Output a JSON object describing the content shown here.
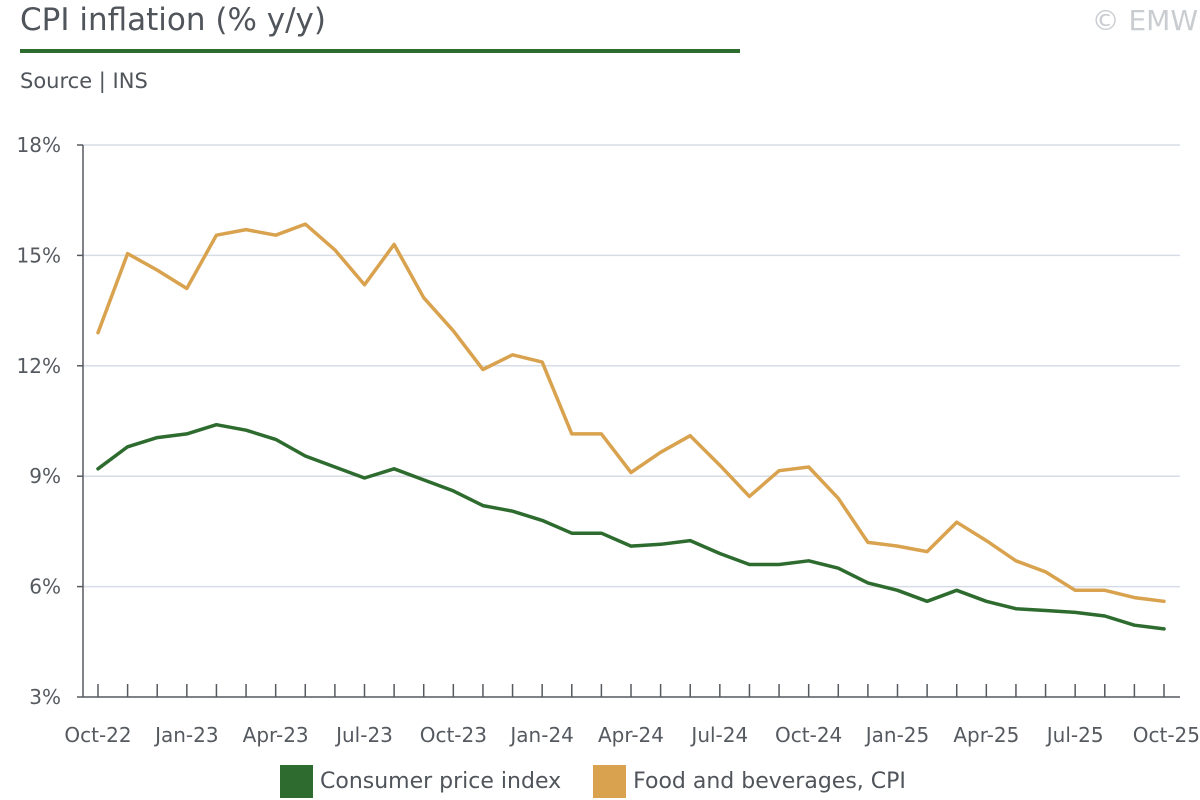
{
  "header": {
    "title": "CPI inflation (% y/y)",
    "source": "Source | INS",
    "copyright": "© EMW"
  },
  "colors": {
    "cpi": "#2e6b2f",
    "food": "#d9a24e",
    "grid": "#d6dde6",
    "axis": "#555a60",
    "underline": "#2e6b2f"
  },
  "chart_data": {
    "type": "line",
    "title": "CPI inflation (% y/y)",
    "x": [
      "Oct-22",
      "Nov-22",
      "Dec-22",
      "Jan-23",
      "Feb-23",
      "Mar-23",
      "Apr-23",
      "May-23",
      "Jun-23",
      "Jul-23",
      "Aug-23",
      "Sep-23",
      "Oct-23",
      "Nov-23",
      "Dec-23",
      "Jan-24",
      "Feb-24",
      "Mar-24",
      "Apr-24",
      "May-24",
      "Jun-24",
      "Jul-24",
      "Aug-24",
      "Sep-24",
      "Oct-24",
      "Nov-24",
      "Dec-24",
      "Jan-25",
      "Feb-25",
      "Mar-25",
      "Apr-25",
      "May-25",
      "Jun-25",
      "Jul-25",
      "Aug-25",
      "Sep-25",
      "Oct-25"
    ],
    "xticklabels": [
      "Oct-22",
      "Jan-23",
      "Apr-23",
      "Jul-23",
      "Oct-23",
      "Jan-24",
      "Apr-24",
      "Jul-24",
      "Oct-24",
      "Jan-25",
      "Apr-25",
      "Jul-25",
      "Oct-25"
    ],
    "ylim": [
      3,
      18
    ],
    "yticks": [
      3,
      6,
      9,
      12,
      15,
      18
    ],
    "yticklabels": [
      "3%",
      "6%",
      "9%",
      "12%",
      "15%",
      "18%"
    ],
    "grid": true,
    "legend": "bottom",
    "series": [
      {
        "name": "Consumer price index",
        "color": "#2e6b2f",
        "values": [
          9.2,
          9.8,
          10.05,
          10.15,
          10.4,
          10.25,
          10.0,
          9.55,
          9.25,
          8.95,
          9.2,
          8.9,
          8.6,
          8.2,
          8.05,
          7.8,
          7.45,
          7.45,
          7.1,
          7.15,
          7.25,
          6.9,
          6.6,
          6.6,
          6.7,
          6.5,
          6.1,
          5.9,
          5.6,
          5.9,
          5.6,
          5.4,
          5.35,
          5.3,
          5.2,
          4.95,
          4.85
        ]
      },
      {
        "name": "Food and beverages, CPI",
        "color": "#d9a24e",
        "values": [
          12.9,
          15.05,
          14.6,
          14.1,
          15.55,
          15.7,
          15.55,
          15.85,
          15.15,
          14.2,
          15.3,
          13.85,
          12.95,
          11.9,
          12.3,
          12.1,
          10.15,
          10.15,
          9.1,
          9.65,
          10.1,
          9.3,
          8.45,
          9.15,
          9.25,
          8.4,
          7.2,
          7.1,
          6.95,
          7.75,
          7.25,
          6.7,
          6.4,
          5.9,
          5.9,
          5.7,
          5.6
        ]
      }
    ]
  }
}
